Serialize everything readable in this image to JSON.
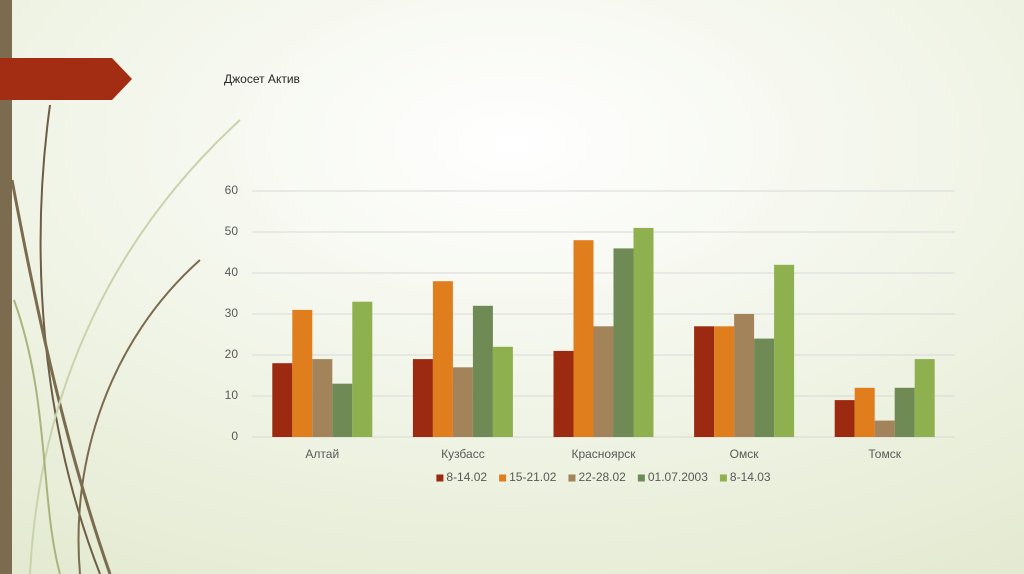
{
  "chart_data": {
    "type": "bar",
    "title": "Джосет Актив",
    "categories": [
      "Алтай",
      "Кузбасс",
      "Красноярск",
      "Омск",
      "Томск"
    ],
    "series": [
      {
        "name": "8-14.02",
        "color": "#9c2a10",
        "values": [
          18,
          19,
          21,
          27,
          9
        ]
      },
      {
        "name": "15-21.02",
        "color": "#e07d1c",
        "values": [
          31,
          38,
          48,
          27,
          12
        ]
      },
      {
        "name": "22-28.02",
        "color": "#a3845a",
        "values": [
          19,
          17,
          27,
          30,
          4
        ]
      },
      {
        "name": "01.07.2003",
        "color": "#6f8a55",
        "values": [
          13,
          32,
          46,
          24,
          12
        ]
      },
      {
        "name": "8-14.03",
        "color": "#8fb04e",
        "values": [
          33,
          22,
          51,
          42,
          19
        ]
      }
    ],
    "ylim": [
      0,
      60
    ],
    "yticks": [
      0,
      10,
      20,
      30,
      40,
      50,
      60
    ],
    "grid": true,
    "legend": "bottom"
  }
}
